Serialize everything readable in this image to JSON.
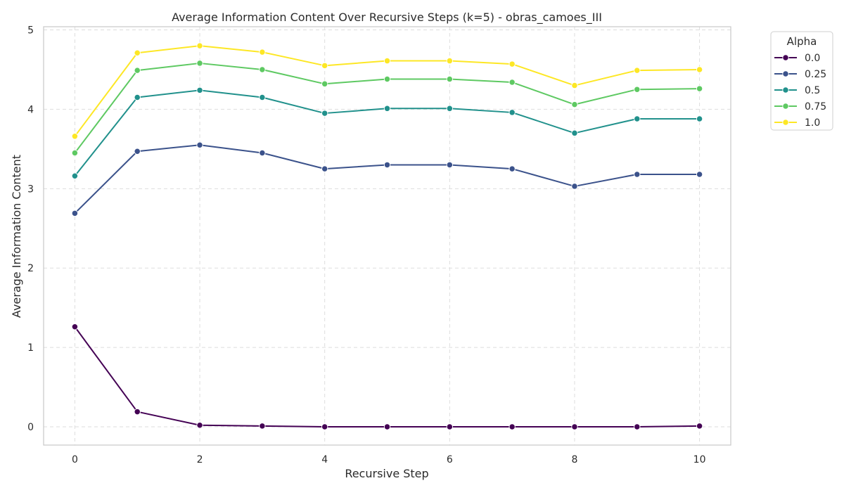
{
  "chart_data": {
    "type": "line",
    "title": "Average Information Content Over Recursive Steps (k=5) - obras_camoes_III",
    "xlabel": "Recursive Step",
    "ylabel": "Average Information Content",
    "x": [
      0,
      1,
      2,
      3,
      4,
      5,
      6,
      7,
      8,
      9,
      10
    ],
    "xlim": [
      -0.5,
      10.5
    ],
    "ylim": [
      -0.23,
      5.04
    ],
    "xticks": [
      "0",
      "2",
      "4",
      "6",
      "8",
      "10"
    ],
    "yticks": [
      "0",
      "1",
      "2",
      "3",
      "4",
      "5"
    ],
    "grid": true,
    "grid_style": "dashed",
    "legend": {
      "title": "Alpha",
      "placement": "outside-top-right"
    },
    "series": [
      {
        "name": "0.0",
        "color": "#440154",
        "values": [
          1.26,
          0.19,
          0.02,
          0.01,
          0.0,
          0.0,
          0.0,
          0.0,
          0.0,
          0.0,
          0.01
        ]
      },
      {
        "name": "0.25",
        "color": "#3b528b",
        "values": [
          2.69,
          3.47,
          3.55,
          3.45,
          3.25,
          3.3,
          3.3,
          3.25,
          3.03,
          3.18,
          3.18
        ]
      },
      {
        "name": "0.5",
        "color": "#21918c",
        "values": [
          3.16,
          4.15,
          4.24,
          4.15,
          3.95,
          4.01,
          4.01,
          3.96,
          3.7,
          3.88,
          3.88
        ]
      },
      {
        "name": "0.75",
        "color": "#5ec962",
        "values": [
          3.45,
          4.49,
          4.58,
          4.5,
          4.32,
          4.38,
          4.38,
          4.34,
          4.06,
          4.25,
          4.26
        ]
      },
      {
        "name": "1.0",
        "color": "#fde725",
        "values": [
          3.66,
          4.71,
          4.8,
          4.72,
          4.55,
          4.61,
          4.61,
          4.57,
          4.3,
          4.49,
          4.5
        ]
      }
    ]
  }
}
